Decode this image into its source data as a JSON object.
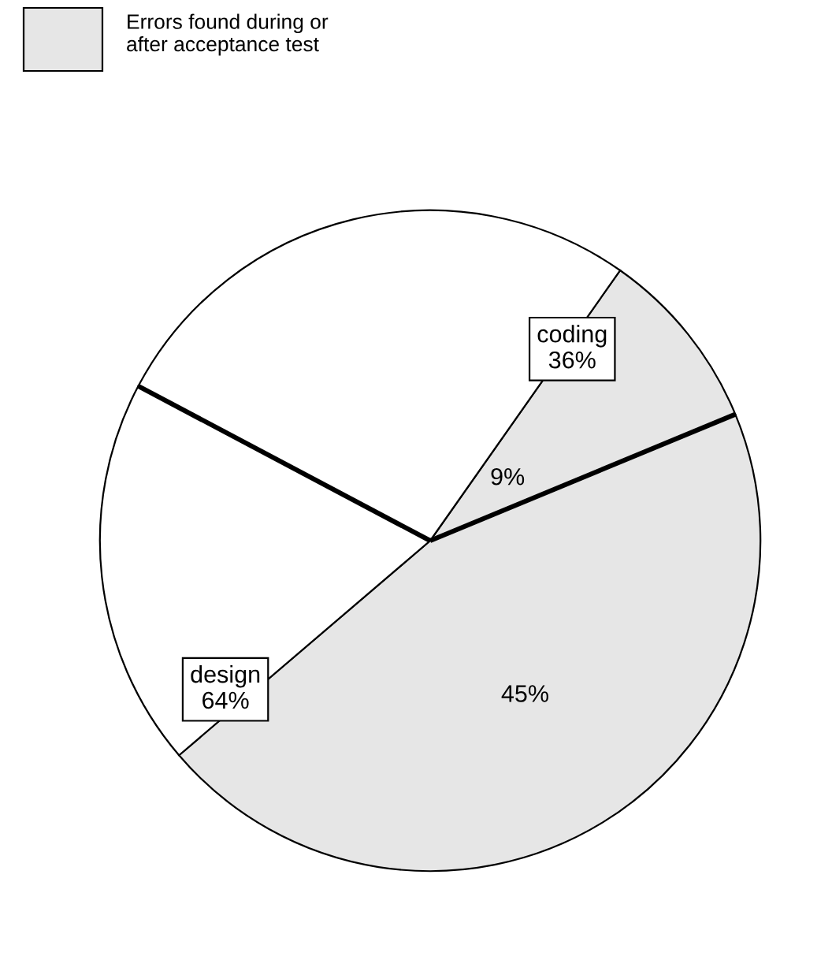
{
  "chart_data": {
    "type": "pie",
    "categories": [
      null,
      null,
      null,
      null
    ],
    "values": [
      9,
      45,
      19,
      27
    ],
    "colors": [
      "#e6e6e6",
      "#e6e6e6",
      "#ffffff",
      "#ffffff"
    ],
    "value_labels": [
      "9%",
      "45%",
      null,
      null
    ],
    "legend_title": "Errors found during or\nafter acceptance test",
    "annotations": [
      "coding\n36%",
      "design\n64%"
    ]
  }
}
